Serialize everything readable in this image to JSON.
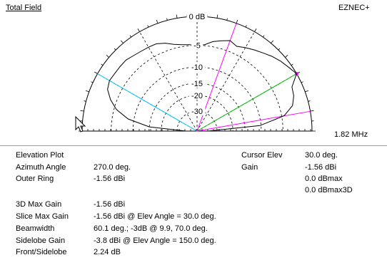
{
  "plot": {
    "title": "Total Field",
    "app_name": "EZNEC+",
    "frequency": "1.82 MHz",
    "ring_labels": [
      "0 dB",
      "-5",
      "-10",
      "-15",
      "-20",
      "-30"
    ],
    "colors": {
      "cursor_line": "#00bb00",
      "half_power_line": "#ff00ff",
      "sidelobe_line": "#00c8ff",
      "pattern": "#000000",
      "marker": "#ff00ff"
    }
  },
  "info": {
    "elevation_plot": "Elevation Plot",
    "azimuth_angle_label": "Azimuth Angle",
    "azimuth_angle_value": "270.0 deg.",
    "outer_ring_label": "Outer Ring",
    "outer_ring_value": "-1.56 dBi",
    "max_gain_3d_label": "3D Max Gain",
    "max_gain_3d_value": "-1.56 dBi",
    "slice_max_gain_label": "Slice Max Gain",
    "slice_max_gain_value": "-1.56 dBi @ Elev Angle = 30.0 deg.",
    "beamwidth_label": "Beamwidth",
    "beamwidth_value": "60.1 deg.; -3dB @ 9.9, 70.0 deg.",
    "sidelobe_gain_label": "Sidelobe Gain",
    "sidelobe_gain_value": "-3.8 dBi @ Elev Angle = 150.0 deg.",
    "front_sidelobe_label": "Front/Sidelobe",
    "front_sidelobe_value": "2.24 dB",
    "cursor_elev_label": "Cursor Elev",
    "cursor_elev_value": "30.0 deg.",
    "gain_label": "Gain",
    "gain_value": "-1.56 dBi",
    "gain_dbmax": "0.0 dBmax",
    "gain_dbmax3d": "0.0 dBmax3D"
  },
  "chart_data": {
    "type": "polar-elevation",
    "title": "Total Field",
    "frequency": "1.82 MHz",
    "ring_labels_db": [
      0,
      -5,
      -10,
      -15,
      -20,
      -30
    ],
    "cursor_elevation_deg": 30,
    "half_power_angles_deg": [
      9.9,
      70.0
    ],
    "sidelobe_angle_deg": 150,
    "pattern_db": [
      [
        0,
        -40
      ],
      [
        5,
        -10.3
      ],
      [
        10,
        -4.5
      ],
      [
        15,
        -2.6
      ],
      [
        20,
        -1.9
      ],
      [
        25,
        -1.6
      ],
      [
        30,
        0
      ],
      [
        35,
        -0.5
      ],
      [
        40,
        -0.9
      ],
      [
        45,
        -1.4
      ],
      [
        50,
        -2.0
      ],
      [
        55,
        -2.5
      ],
      [
        60,
        -3.0
      ],
      [
        65,
        -3.5
      ],
      [
        70,
        -3.0
      ],
      [
        75,
        -3.5
      ],
      [
        80,
        -4.0
      ],
      [
        85,
        -4.8
      ],
      [
        90,
        -5.0
      ],
      [
        95,
        -4.8
      ],
      [
        100,
        -4.6
      ],
      [
        105,
        -4.2
      ],
      [
        110,
        -3.5
      ],
      [
        115,
        -3.0
      ],
      [
        120,
        -2.9
      ],
      [
        125,
        -2.8
      ],
      [
        130,
        -2.6
      ],
      [
        135,
        -2.3
      ],
      [
        140,
        -2.3
      ],
      [
        145,
        -2.3
      ],
      [
        150,
        -2.2
      ],
      [
        155,
        -2.6
      ],
      [
        160,
        -3.8
      ],
      [
        165,
        -5.5
      ],
      [
        170,
        -8.5
      ],
      [
        175,
        -15.0
      ],
      [
        180,
        -40
      ]
    ]
  }
}
